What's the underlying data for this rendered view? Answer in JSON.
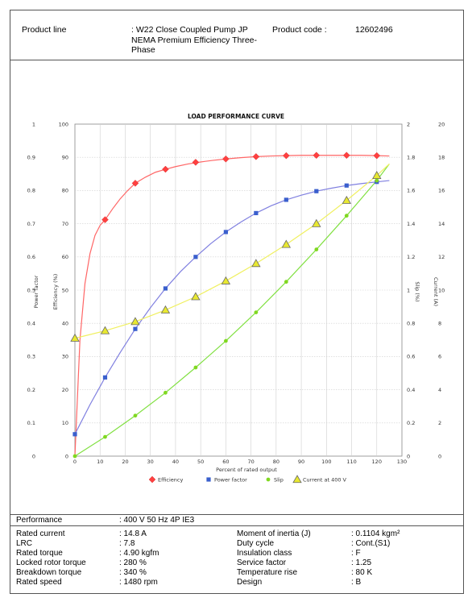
{
  "header": {
    "product_line_label": "Product line",
    "product_line_value_1": ": W22 Close Coupled Pump JP",
    "product_line_value_2": "NEMA Premium Efficiency Three-",
    "product_line_value_3": "Phase",
    "product_code_label": "Product code :",
    "product_code_value": "12602496"
  },
  "chart_data": {
    "type": "line",
    "title": "LOAD PERFORMANCE CURVE",
    "xlabel": "Percent of rated output",
    "xlim": [
      0,
      130
    ],
    "x_ticks": [
      "0",
      "10",
      "20",
      "30",
      "40",
      "50",
      "60",
      "70",
      "80",
      "90",
      "100",
      "110",
      "120",
      "130"
    ],
    "y_left_outer": {
      "label": "Power factor",
      "lim": [
        0,
        1
      ],
      "ticks": [
        "0",
        "0.1",
        "0.2",
        "0.3",
        "0.4",
        "0.5",
        "0.6",
        "0.7",
        "0.8",
        "0.9",
        "1"
      ]
    },
    "y_left_inner": {
      "label": "Efficiency (%)",
      "lim": [
        0,
        100
      ],
      "ticks": [
        "0",
        "10",
        "20",
        "30",
        "40",
        "50",
        "60",
        "70",
        "80",
        "90",
        "100"
      ]
    },
    "y_right_inner": {
      "label": "Slip (%)",
      "lim": [
        0,
        2
      ],
      "ticks": [
        "0",
        "0.2",
        "0.4",
        "0.6",
        "0.8",
        "1",
        "1.2",
        "1.4",
        "1.6",
        "1.8",
        "2"
      ]
    },
    "y_right_outer": {
      "label": "Current (A)",
      "lim": [
        0,
        20
      ],
      "ticks": [
        "0",
        "2",
        "4",
        "6",
        "8",
        "10",
        "12",
        "14",
        "16",
        "18",
        "20"
      ]
    },
    "grid": true,
    "legend_position": "bottom",
    "series": [
      {
        "name": "Efficiency",
        "color": "#ff4040",
        "line_color": "#ff6666",
        "marker": "diamond",
        "x": [
          12,
          24,
          36,
          48,
          60,
          72,
          84,
          96,
          108,
          120
        ],
        "values": [
          71.2,
          82.2,
          86.4,
          88.5,
          89.5,
          90.2,
          90.5,
          90.6,
          90.6,
          90.5
        ],
        "curve_x": [
          0,
          2,
          4,
          6,
          8,
          10,
          12,
          15,
          18,
          21,
          24,
          28,
          32,
          36,
          40,
          45,
          50,
          55,
          60,
          66,
          72,
          78,
          84,
          90,
          96,
          102,
          108,
          114,
          120,
          125
        ],
        "curve_y": [
          0,
          35,
          52,
          61,
          66.5,
          69.5,
          71.2,
          74.5,
          77.5,
          80,
          82.2,
          84,
          85.5,
          86.4,
          87.2,
          88,
          88.6,
          89.1,
          89.5,
          89.9,
          90.2,
          90.4,
          90.5,
          90.6,
          90.6,
          90.6,
          90.6,
          90.6,
          90.5,
          90.4
        ]
      },
      {
        "name": "Power factor",
        "color": "#3a5fcd",
        "line_color": "#8080e0",
        "marker": "square",
        "x": [
          0,
          12,
          24,
          36,
          48,
          60,
          72,
          84,
          96,
          108,
          120
        ],
        "values": [
          0.066,
          0.237,
          0.383,
          0.505,
          0.6,
          0.675,
          0.732,
          0.772,
          0.798,
          0.815,
          0.826
        ],
        "curve_x": [
          0,
          6,
          12,
          18,
          24,
          30,
          36,
          42,
          48,
          54,
          60,
          66,
          72,
          78,
          84,
          90,
          96,
          102,
          108,
          114,
          120,
          125
        ],
        "curve_y": [
          0.066,
          0.155,
          0.237,
          0.312,
          0.383,
          0.447,
          0.505,
          0.556,
          0.6,
          0.64,
          0.675,
          0.705,
          0.732,
          0.754,
          0.772,
          0.786,
          0.798,
          0.807,
          0.815,
          0.821,
          0.826,
          0.83
        ]
      },
      {
        "name": "Slip",
        "color": "#80d820",
        "line_color": "#80e040",
        "marker": "circle",
        "x": [
          0,
          12,
          24,
          36,
          48,
          60,
          72,
          84,
          96,
          108,
          120
        ],
        "values": [
          0,
          0.116,
          0.244,
          0.382,
          0.534,
          0.694,
          0.866,
          1.05,
          1.245,
          1.448,
          1.66
        ],
        "curve_x": [
          0,
          12,
          24,
          36,
          48,
          60,
          72,
          84,
          96,
          108,
          120,
          125
        ],
        "curve_y": [
          0,
          0.116,
          0.244,
          0.382,
          0.534,
          0.694,
          0.866,
          1.05,
          1.245,
          1.448,
          1.66,
          1.76
        ]
      },
      {
        "name": "Current at 400 V",
        "color": "#e8e830",
        "line_color": "#f0f060",
        "marker": "triangle",
        "x": [
          0,
          12,
          24,
          36,
          48,
          60,
          72,
          84,
          96,
          108,
          120
        ],
        "values": [
          7.1,
          7.55,
          8.1,
          8.8,
          9.6,
          10.55,
          11.6,
          12.75,
          14.0,
          15.4,
          16.9
        ],
        "curve_x": [
          0,
          12,
          24,
          36,
          48,
          60,
          72,
          84,
          96,
          108,
          120,
          125
        ],
        "curve_y": [
          7.1,
          7.55,
          8.1,
          8.8,
          9.6,
          10.55,
          11.6,
          12.75,
          14.0,
          15.4,
          16.9,
          17.6
        ]
      }
    ]
  },
  "performance": {
    "label": "Performance",
    "value": ": 400 V 50 Hz 4P IE3"
  },
  "specs_left": [
    {
      "label": "Rated current",
      "value": ": 14.8 A"
    },
    {
      "label": "LRC",
      "value": ": 7.8"
    },
    {
      "label": "Rated torque",
      "value": ": 4.90 kgfm"
    },
    {
      "label": "Locked rotor torque",
      "value": ": 280 %"
    },
    {
      "label": "Breakdown torque",
      "value": ": 340 %"
    },
    {
      "label": "Rated speed",
      "value": ": 1480 rpm"
    }
  ],
  "specs_right": [
    {
      "label": "Moment of inertia (J)",
      "value": ": 0.1104 kgm²"
    },
    {
      "label": "Duty cycle",
      "value": ": Cont.(S1)"
    },
    {
      "label": "Insulation class",
      "value": ": F"
    },
    {
      "label": "Service factor",
      "value": ": 1.25"
    },
    {
      "label": "Temperature rise",
      "value": ": 80 K"
    },
    {
      "label": "Design",
      "value": ": B"
    }
  ]
}
